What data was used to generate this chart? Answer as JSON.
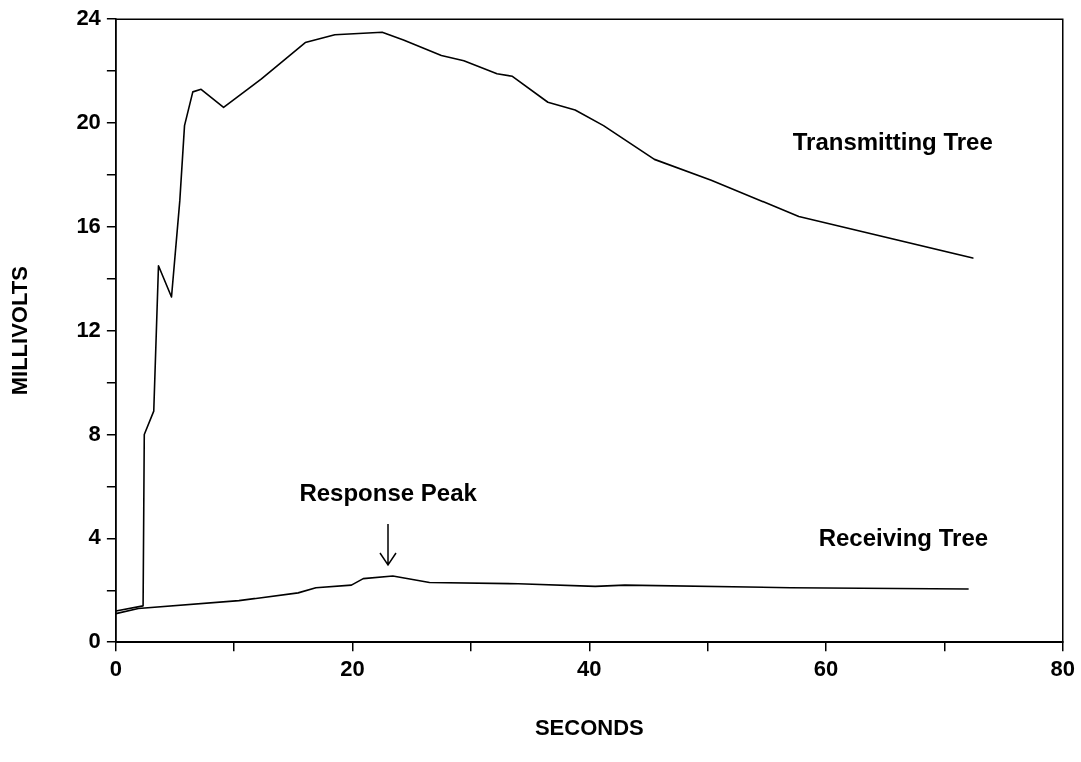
{
  "chart_data": {
    "type": "line",
    "xlabel": "SECONDS",
    "ylabel": "MILLIVOLTS",
    "xlim": [
      0,
      80
    ],
    "xticks": [
      0,
      {
        "value": 10,
        "label": null
      },
      20,
      {
        "value": 30,
        "label": null
      },
      40,
      {
        "value": 50,
        "label": null
      },
      60,
      {
        "value": 70,
        "label": null
      },
      80
    ],
    "ylim": [
      0,
      24
    ],
    "yticks": [
      0,
      {
        "value": 2,
        "label": null
      },
      4,
      {
        "value": 6,
        "label": null
      },
      8,
      {
        "value": 10,
        "label": null
      },
      12,
      {
        "value": 14,
        "label": null
      },
      16,
      {
        "value": 18,
        "label": null
      },
      20,
      {
        "value": 22,
        "label": null
      },
      24
    ],
    "grid": false,
    "legend": false,
    "marker": "none",
    "line_style": "solid",
    "series": [
      {
        "name": "Transmitting Tree",
        "color": "#000000",
        "x": [
          0,
          2.3,
          2.4,
          3.2,
          3.6,
          4.7,
          5.4,
          5.8,
          6.5,
          7.2,
          9.1,
          12.3,
          16,
          18.5,
          22.5,
          24.3,
          27.5,
          29.4,
          32.2,
          33.5,
          36.5,
          38.8,
          41.2,
          45.5,
          50.3,
          57.7,
          72.4
        ],
        "values": [
          1.2,
          1.4,
          8.0,
          8.9,
          14.5,
          13.3,
          17.0,
          19.9,
          21.2,
          21.3,
          20.6,
          21.7,
          23.1,
          23.4,
          23.5,
          23.2,
          22.6,
          22.4,
          21.9,
          21.8,
          20.8,
          20.5,
          19.9,
          18.6,
          17.8,
          16.4,
          14.8
        ]
      },
      {
        "name": "Receiving Tree",
        "color": "#000000",
        "x": [
          0,
          1.9,
          10.4,
          15.4,
          16.9,
          19.9,
          20.9,
          23.4,
          26.5,
          34,
          40.5,
          43,
          57,
          72
        ],
        "values": [
          1.1,
          1.3,
          1.6,
          1.9,
          2.1,
          2.2,
          2.45,
          2.55,
          2.3,
          2.25,
          2.15,
          2.2,
          2.1,
          2.05
        ]
      }
    ],
    "annotations": [
      {
        "text": "Response Peak",
        "x": 23,
        "y": 2.6
      }
    ]
  }
}
